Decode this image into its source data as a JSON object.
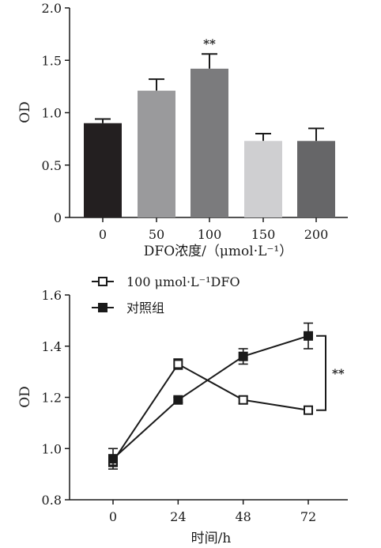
{
  "chart_data": [
    {
      "type": "bar",
      "title": "",
      "xlabel": "DFO浓度/（μmol·L⁻¹）",
      "ylabel": "OD",
      "ylim": [
        0,
        2.0
      ],
      "yticks": [
        "0",
        "0.5",
        "1.0",
        "1.5",
        "2.0"
      ],
      "categories": [
        "0",
        "50",
        "100",
        "150",
        "200"
      ],
      "values": [
        0.9,
        1.21,
        1.42,
        0.73,
        0.73
      ],
      "errors": [
        0.04,
        0.11,
        0.14,
        0.07,
        0.12
      ],
      "bar_colors": [
        "#231f20",
        "#9a9a9c",
        "#7b7b7d",
        "#cfcfd1",
        "#666668"
      ],
      "annotations": [
        {
          "category": "100",
          "text": "**"
        }
      ]
    },
    {
      "type": "line",
      "title": "",
      "xlabel": "时间/h",
      "ylabel": "OD",
      "ylim": [
        0.8,
        1.6
      ],
      "yticks": [
        "0.8",
        "1.0",
        "1.2",
        "1.4",
        "1.6"
      ],
      "xticks": [
        "0",
        "24",
        "48",
        "72"
      ],
      "x": [
        0,
        24,
        48,
        72
      ],
      "legend_position": "top-center",
      "series": [
        {
          "name": "100 μmol·L⁻¹DFO",
          "marker": "open-square",
          "values": [
            0.95,
            1.33,
            1.19,
            1.15
          ],
          "errors": [
            0.02,
            0.02,
            0.015,
            0.01
          ]
        },
        {
          "name": "对照组",
          "marker": "filled-square",
          "values": [
            0.96,
            1.19,
            1.36,
            1.44
          ],
          "errors": [
            0.04,
            0.01,
            0.03,
            0.05
          ]
        }
      ],
      "annotations": [
        {
          "text": "**"
        }
      ]
    }
  ]
}
